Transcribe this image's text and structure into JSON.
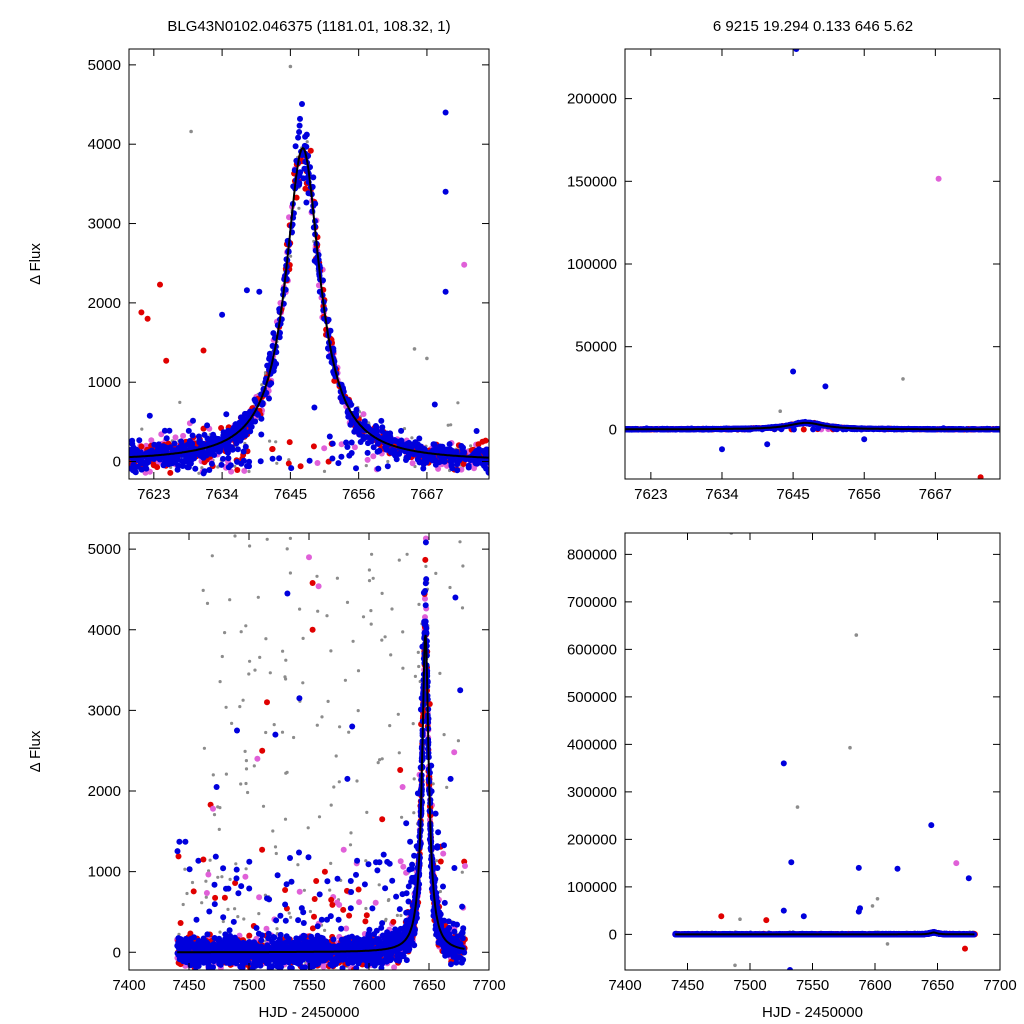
{
  "header": {
    "left_title": "BLG43N0102.046375 (1181.01, 108.32,    1)",
    "right_title": "6   9215   19.294   0.133   646   5.62"
  },
  "colors": {
    "gray": "#8c8c8c",
    "red": "#e00000",
    "blue": "#0000dd",
    "pink": "#e060d8",
    "model": "#000000"
  },
  "chart_data": [
    {
      "id": "top-left",
      "type": "scatter",
      "ylabel": "Δ Flux",
      "xlabel": "",
      "xlim": [
        7619,
        7677
      ],
      "ylim": [
        -220,
        5200
      ],
      "xticks": [
        7623,
        7634,
        7645,
        7656,
        7667
      ],
      "yticks": [
        0,
        1000,
        2000,
        3000,
        4000,
        5000
      ],
      "model": {
        "t0": 7647,
        "amplitude": 3950,
        "width": 3.6,
        "exponent": 1.25
      },
      "outliers": [
        {
          "x": 7621,
          "y": 1880,
          "c": "red"
        },
        {
          "x": 7622,
          "y": 1800,
          "c": "red"
        },
        {
          "x": 7624,
          "y": 2230,
          "c": "red"
        },
        {
          "x": 7625,
          "y": 1270,
          "c": "red"
        },
        {
          "x": 7631,
          "y": 1400,
          "c": "red"
        },
        {
          "x": 7638,
          "y": 2160,
          "c": "blue"
        },
        {
          "x": 7640,
          "y": 2140,
          "c": "blue"
        },
        {
          "x": 7634,
          "y": 1850,
          "c": "blue"
        },
        {
          "x": 7670,
          "y": 4400,
          "c": "blue"
        },
        {
          "x": 7670,
          "y": 3400,
          "c": "blue"
        },
        {
          "x": 7670,
          "y": 2140,
          "c": "blue"
        },
        {
          "x": 7673,
          "y": 2480,
          "c": "pink"
        },
        {
          "x": 7629,
          "y": 4160,
          "c": "gray"
        },
        {
          "x": 7645,
          "y": 4980,
          "c": "gray"
        },
        {
          "x": 7665,
          "y": 1420,
          "c": "gray"
        },
        {
          "x": 7667,
          "y": 1300,
          "c": "gray"
        }
      ]
    },
    {
      "id": "top-right",
      "type": "scatter",
      "ylabel": "",
      "xlabel": "",
      "xlim": [
        7619,
        7677
      ],
      "ylim": [
        -30000,
        230000
      ],
      "xticks": [
        7623,
        7634,
        7645,
        7656,
        7667
      ],
      "yticks": [
        0,
        50000,
        100000,
        150000,
        200000
      ],
      "model": {
        "t0": 7647,
        "amplitude": 3950,
        "width": 3.6,
        "exponent": 1.25
      },
      "outliers": [
        {
          "x": 7645.5,
          "y": 230000,
          "c": "blue"
        },
        {
          "x": 7667.5,
          "y": 151500,
          "c": "pink"
        },
        {
          "x": 7645,
          "y": 35000,
          "c": "blue"
        },
        {
          "x": 7650,
          "y": 26000,
          "c": "blue"
        },
        {
          "x": 7662,
          "y": 30500,
          "c": "gray"
        },
        {
          "x": 7674,
          "y": -29000,
          "c": "red"
        },
        {
          "x": 7641,
          "y": -9000,
          "c": "blue"
        },
        {
          "x": 7634,
          "y": -12000,
          "c": "blue"
        },
        {
          "x": 7656,
          "y": -6000,
          "c": "blue"
        },
        {
          "x": 7643,
          "y": 11000,
          "c": "gray"
        }
      ]
    },
    {
      "id": "bottom-left",
      "type": "scatter",
      "ylabel": "Δ Flux",
      "xlabel": "HJD - 2450000",
      "xlim": [
        7400,
        7700
      ],
      "ylim": [
        -220,
        5200
      ],
      "xticks": [
        7400,
        7450,
        7500,
        7550,
        7600,
        7650,
        7700
      ],
      "yticks": [
        0,
        1000,
        2000,
        3000,
        4000,
        5000
      ],
      "model": {
        "t0": 7647,
        "amplitude": 3950,
        "width": 3.6,
        "exponent": 1.25
      },
      "outliers": [
        {
          "x": 7550,
          "y": 4900,
          "c": "pink"
        },
        {
          "x": 7553,
          "y": 4580,
          "c": "red"
        },
        {
          "x": 7553,
          "y": 4000,
          "c": "red"
        },
        {
          "x": 7532,
          "y": 4450,
          "c": "blue"
        },
        {
          "x": 7558,
          "y": 4540,
          "c": "pink"
        },
        {
          "x": 7672,
          "y": 4400,
          "c": "blue"
        },
        {
          "x": 7676,
          "y": 3250,
          "c": "blue"
        },
        {
          "x": 7671,
          "y": 2480,
          "c": "pink"
        },
        {
          "x": 7668,
          "y": 2150,
          "c": "blue"
        },
        {
          "x": 7515,
          "y": 3100,
          "c": "red"
        },
        {
          "x": 7511,
          "y": 2500,
          "c": "red"
        },
        {
          "x": 7522,
          "y": 2700,
          "c": "blue"
        },
        {
          "x": 7586,
          "y": 2800,
          "c": "blue"
        },
        {
          "x": 7582,
          "y": 2150,
          "c": "blue"
        },
        {
          "x": 7626,
          "y": 2260,
          "c": "red"
        },
        {
          "x": 7628,
          "y": 2050,
          "c": "pink"
        },
        {
          "x": 7631,
          "y": 1600,
          "c": "blue"
        },
        {
          "x": 7611,
          "y": 1650,
          "c": "red"
        },
        {
          "x": 7468,
          "y": 1830,
          "c": "red"
        },
        {
          "x": 7470,
          "y": 1780,
          "c": "pink"
        },
        {
          "x": 7473,
          "y": 2050,
          "c": "blue"
        },
        {
          "x": 7442,
          "y": 1370,
          "c": "blue"
        },
        {
          "x": 7447,
          "y": 1370,
          "c": "blue"
        },
        {
          "x": 7462,
          "y": 1150,
          "c": "red"
        },
        {
          "x": 7680,
          "y": 1070,
          "c": "pink"
        },
        {
          "x": 7490,
          "y": 2750,
          "c": "blue"
        },
        {
          "x": 7542,
          "y": 3150,
          "c": "blue"
        },
        {
          "x": 7507,
          "y": 2400,
          "c": "pink"
        }
      ]
    },
    {
      "id": "bottom-right",
      "type": "scatter",
      "ylabel": "",
      "xlabel": "HJD - 2450000",
      "xlim": [
        7400,
        7700
      ],
      "ylim": [
        -75000,
        845000
      ],
      "xticks": [
        7400,
        7450,
        7500,
        7550,
        7600,
        7650,
        7700
      ],
      "yticks": [
        0,
        100000,
        200000,
        300000,
        400000,
        500000,
        600000,
        700000,
        800000
      ],
      "model": {
        "t0": 7647,
        "amplitude": 3950,
        "width": 3.6,
        "exponent": 1.25
      },
      "outliers": [
        {
          "x": 7485,
          "y": 845000,
          "c": "gray"
        },
        {
          "x": 7585,
          "y": 630000,
          "c": "gray"
        },
        {
          "x": 7580,
          "y": 393000,
          "c": "gray"
        },
        {
          "x": 7527,
          "y": 360000,
          "c": "blue"
        },
        {
          "x": 7538,
          "y": 268000,
          "c": "gray"
        },
        {
          "x": 7645,
          "y": 230000,
          "c": "blue"
        },
        {
          "x": 7533,
          "y": 152000,
          "c": "blue"
        },
        {
          "x": 7665,
          "y": 150000,
          "c": "pink"
        },
        {
          "x": 7587,
          "y": 140000,
          "c": "blue"
        },
        {
          "x": 7618,
          "y": 138000,
          "c": "blue"
        },
        {
          "x": 7675,
          "y": 118000,
          "c": "blue"
        },
        {
          "x": 7602,
          "y": 75000,
          "c": "gray"
        },
        {
          "x": 7598,
          "y": 60000,
          "c": "gray"
        },
        {
          "x": 7588,
          "y": 55000,
          "c": "blue"
        },
        {
          "x": 7587,
          "y": 48000,
          "c": "blue"
        },
        {
          "x": 7527,
          "y": 50000,
          "c": "blue"
        },
        {
          "x": 7477,
          "y": 38000,
          "c": "red"
        },
        {
          "x": 7513,
          "y": 30000,
          "c": "red"
        },
        {
          "x": 7543,
          "y": 38000,
          "c": "blue"
        },
        {
          "x": 7492,
          "y": 32000,
          "c": "gray"
        },
        {
          "x": 7488,
          "y": -65000,
          "c": "gray"
        },
        {
          "x": 7532,
          "y": -75000,
          "c": "blue"
        },
        {
          "x": 7672,
          "y": -30000,
          "c": "red"
        },
        {
          "x": 7610,
          "y": -20000,
          "c": "gray"
        }
      ]
    }
  ]
}
